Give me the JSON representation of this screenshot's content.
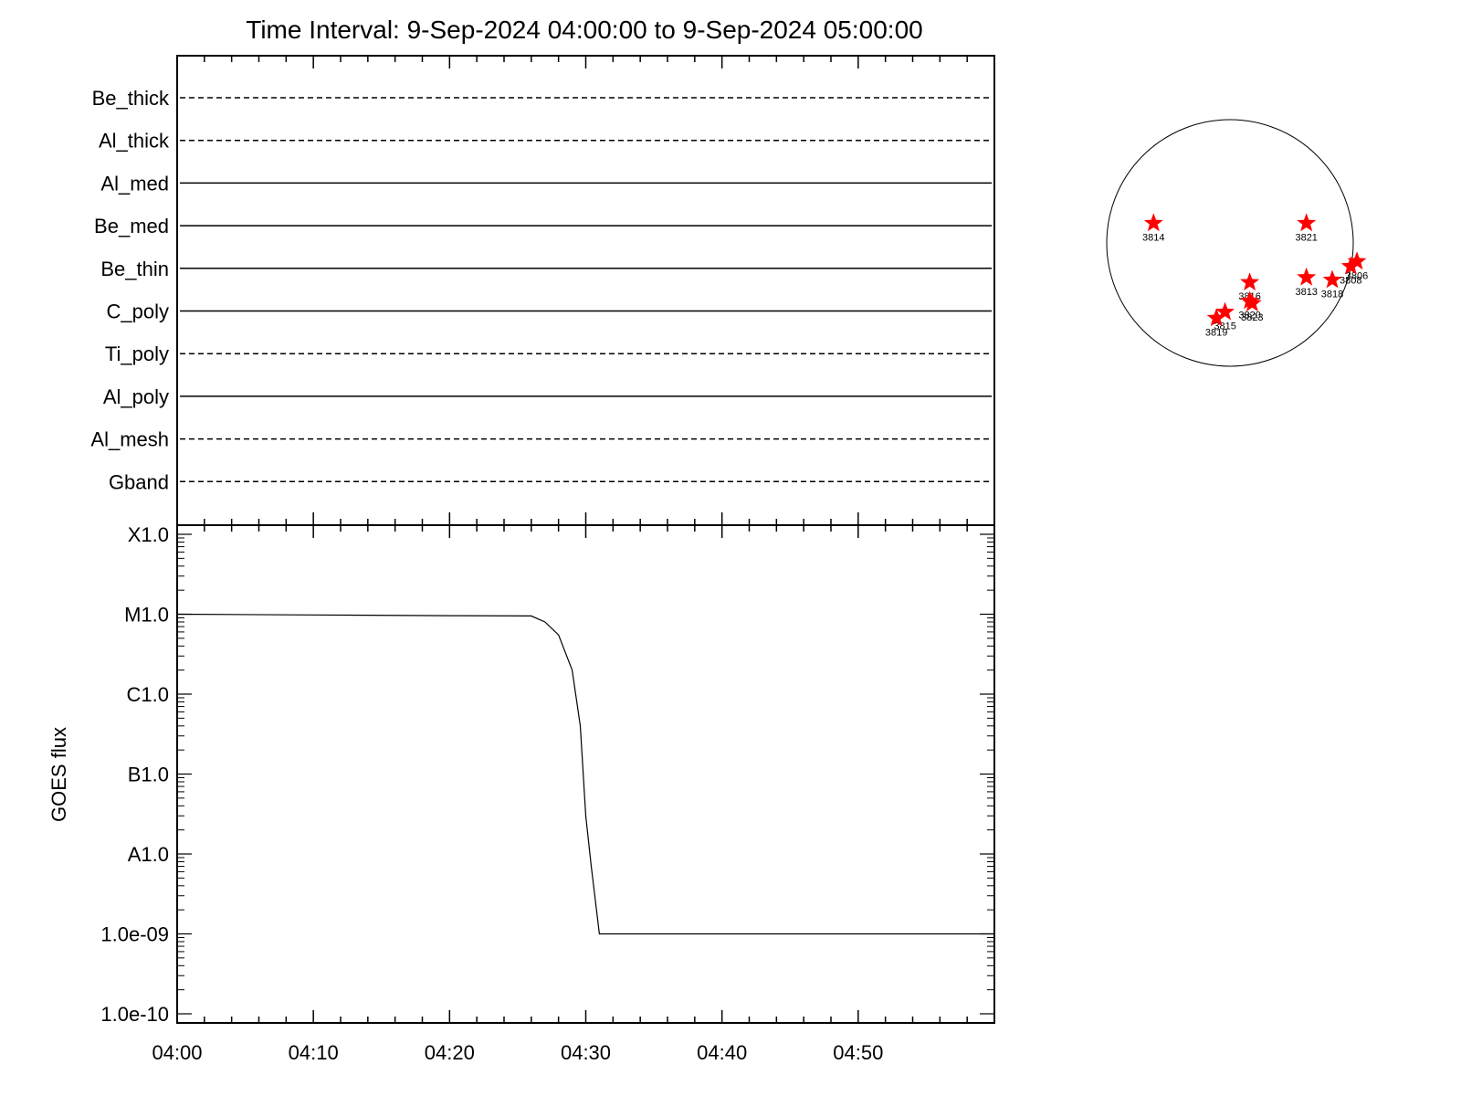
{
  "title": "Time Interval:  9-Sep-2024 04:00:00 to  9-Sep-2024 05:00:00",
  "colors": {
    "axis": "#000000",
    "background": "#ffffff",
    "marker": "#ff0000"
  },
  "chart_data": [
    {
      "type": "line",
      "panel": "filter-status",
      "xlim": [
        "04:00",
        "05:00"
      ],
      "grid": false,
      "series": [
        {
          "name": "Be_thick",
          "style": "dashed"
        },
        {
          "name": "Al_thick",
          "style": "dashed"
        },
        {
          "name": "Al_med",
          "style": "solid"
        },
        {
          "name": "Be_med",
          "style": "solid"
        },
        {
          "name": "Be_thin",
          "style": "solid"
        },
        {
          "name": "C_poly",
          "style": "solid"
        },
        {
          "name": "Ti_poly",
          "style": "dashed"
        },
        {
          "name": "Al_poly",
          "style": "solid"
        },
        {
          "name": "Al_mesh",
          "style": "dashed"
        },
        {
          "name": "Gband",
          "style": "dashed"
        }
      ]
    },
    {
      "type": "line",
      "panel": "goes-flux",
      "scale": "log",
      "xlabel": "",
      "ylabel": "GOES flux",
      "xlim": [
        "04:00",
        "05:00"
      ],
      "ylim": [
        1e-10,
        0.0001
      ],
      "yticks": [
        {
          "value": 0.0001,
          "label": "X1.0"
        },
        {
          "value": 1e-05,
          "label": "M1.0"
        },
        {
          "value": 1e-06,
          "label": "C1.0"
        },
        {
          "value": 1e-07,
          "label": "B1.0"
        },
        {
          "value": 1e-08,
          "label": "A1.0"
        },
        {
          "value": 1e-09,
          "label": "1.0e-09"
        },
        {
          "value": 1e-10,
          "label": "1.0e-10"
        }
      ],
      "xticks": [
        "04:00",
        "04:10",
        "04:20",
        "04:30",
        "04:40",
        "04:50"
      ],
      "grid": false,
      "series": [
        {
          "x": [
            "04:00",
            "04:10",
            "04:20",
            "04:26",
            "04:27",
            "04:28",
            "04:29",
            "04:29.6",
            "04:30",
            "04:30.4",
            "04:31",
            "04:40",
            "04:50",
            "05:00"
          ],
          "y": [
            1e-05,
            9.8e-06,
            9.6e-06,
            9.5e-06,
            8e-06,
            5.5e-06,
            2e-06,
            4e-07,
            3e-08,
            7e-09,
            1e-09,
            1e-09,
            1e-09,
            1e-09
          ]
        }
      ]
    },
    {
      "type": "scatter",
      "panel": "solar-disk",
      "markers": [
        {
          "label": "3814",
          "x": -0.62,
          "y": 0.16
        },
        {
          "label": "3821",
          "x": 0.62,
          "y": 0.16
        },
        {
          "label": "3816",
          "x": 0.16,
          "y": -0.32
        },
        {
          "label": "3823",
          "x": 0.18,
          "y": -0.49
        },
        {
          "label": "3820",
          "x": 0.16,
          "y": -0.47
        },
        {
          "label": "3815",
          "x": -0.04,
          "y": -0.56
        },
        {
          "label": "3819",
          "x": -0.11,
          "y": -0.61
        },
        {
          "label": "3813",
          "x": 0.62,
          "y": -0.28
        },
        {
          "label": "3818",
          "x": 0.83,
          "y": -0.3
        },
        {
          "label": "3806",
          "x": 1.03,
          "y": -0.15
        },
        {
          "label": "3808",
          "x": 0.98,
          "y": -0.19
        }
      ]
    }
  ]
}
